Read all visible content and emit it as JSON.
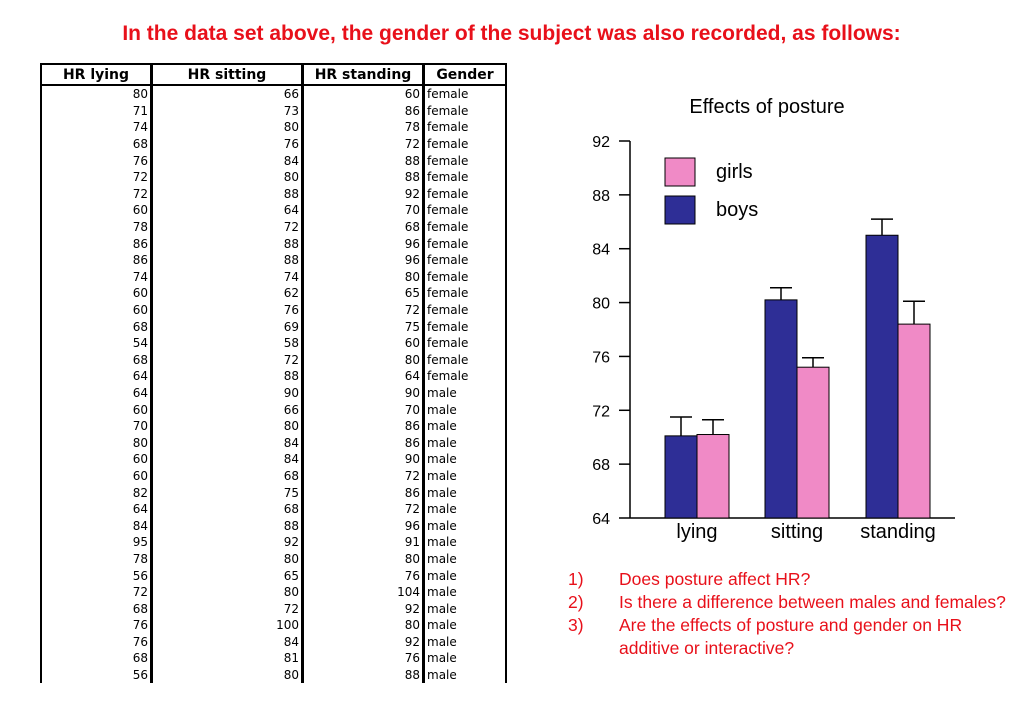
{
  "title": "In the data set above, the gender of the subject was also recorded, as follows:",
  "table": {
    "headers": [
      "HR lying",
      "HR sitting",
      "HR standing",
      "Gender"
    ],
    "rows": [
      [
        "80",
        "66",
        "60",
        "female"
      ],
      [
        "71",
        "73",
        "86",
        "female"
      ],
      [
        "74",
        "80",
        "78",
        "female"
      ],
      [
        "68",
        "76",
        "72",
        "female"
      ],
      [
        "76",
        "84",
        "88",
        "female"
      ],
      [
        "72",
        "80",
        "88",
        "female"
      ],
      [
        "72",
        "88",
        "92",
        "female"
      ],
      [
        "60",
        "64",
        "70",
        "female"
      ],
      [
        "78",
        "72",
        "68",
        "female"
      ],
      [
        "86",
        "88",
        "96",
        "female"
      ],
      [
        "86",
        "88",
        "96",
        "female"
      ],
      [
        "74",
        "74",
        "80",
        "female"
      ],
      [
        "60",
        "62",
        "65",
        "female"
      ],
      [
        "60",
        "76",
        "72",
        "female"
      ],
      [
        "68",
        "69",
        "75",
        "female"
      ],
      [
        "54",
        "58",
        "60",
        "female"
      ],
      [
        "68",
        "72",
        "80",
        "female"
      ],
      [
        "64",
        "88",
        "64",
        "female"
      ],
      [
        "64",
        "90",
        "90",
        "male"
      ],
      [
        "60",
        "66",
        "70",
        "male"
      ],
      [
        "70",
        "80",
        "86",
        "male"
      ],
      [
        "80",
        "84",
        "86",
        "male"
      ],
      [
        "60",
        "84",
        "90",
        "male"
      ],
      [
        "60",
        "68",
        "72",
        "male"
      ],
      [
        "82",
        "75",
        "86",
        "male"
      ],
      [
        "64",
        "68",
        "72",
        "male"
      ],
      [
        "84",
        "88",
        "96",
        "male"
      ],
      [
        "95",
        "92",
        "91",
        "male"
      ],
      [
        "78",
        "80",
        "80",
        "male"
      ],
      [
        "56",
        "65",
        "76",
        "male"
      ],
      [
        "72",
        "80",
        "104",
        "male"
      ],
      [
        "68",
        "72",
        "92",
        "male"
      ],
      [
        "76",
        "100",
        "80",
        "male"
      ],
      [
        "76",
        "84",
        "92",
        "male"
      ],
      [
        "68",
        "81",
        "76",
        "male"
      ],
      [
        "56",
        "80",
        "88",
        "male"
      ]
    ]
  },
  "chart_data": {
    "type": "bar",
    "title": "Effects of posture",
    "categories": [
      "lying",
      "sitting",
      "standing"
    ],
    "series": [
      {
        "name": "boys",
        "color": "#2e2e96",
        "values": [
          70.1,
          80.2,
          85.0
        ],
        "errors": [
          1.4,
          0.9,
          1.2
        ]
      },
      {
        "name": "girls",
        "color": "#f08ac6",
        "values": [
          70.2,
          75.2,
          78.4
        ],
        "errors": [
          1.1,
          0.7,
          1.7
        ]
      }
    ],
    "legend_order": [
      "girls",
      "boys"
    ],
    "legend_position": "top-left",
    "ylim": [
      64,
      92
    ],
    "yticks": [
      64,
      68,
      72,
      76,
      80,
      84,
      88,
      92
    ],
    "xlabel": "",
    "ylabel": "",
    "grid": false
  },
  "questions": [
    {
      "num": "1)",
      "text": "Does posture affect HR?"
    },
    {
      "num": "2)",
      "text": "Is there a difference between males and females?"
    },
    {
      "num": "3)",
      "text": "Are the effects of posture and gender on HR additive or interactive?"
    }
  ]
}
